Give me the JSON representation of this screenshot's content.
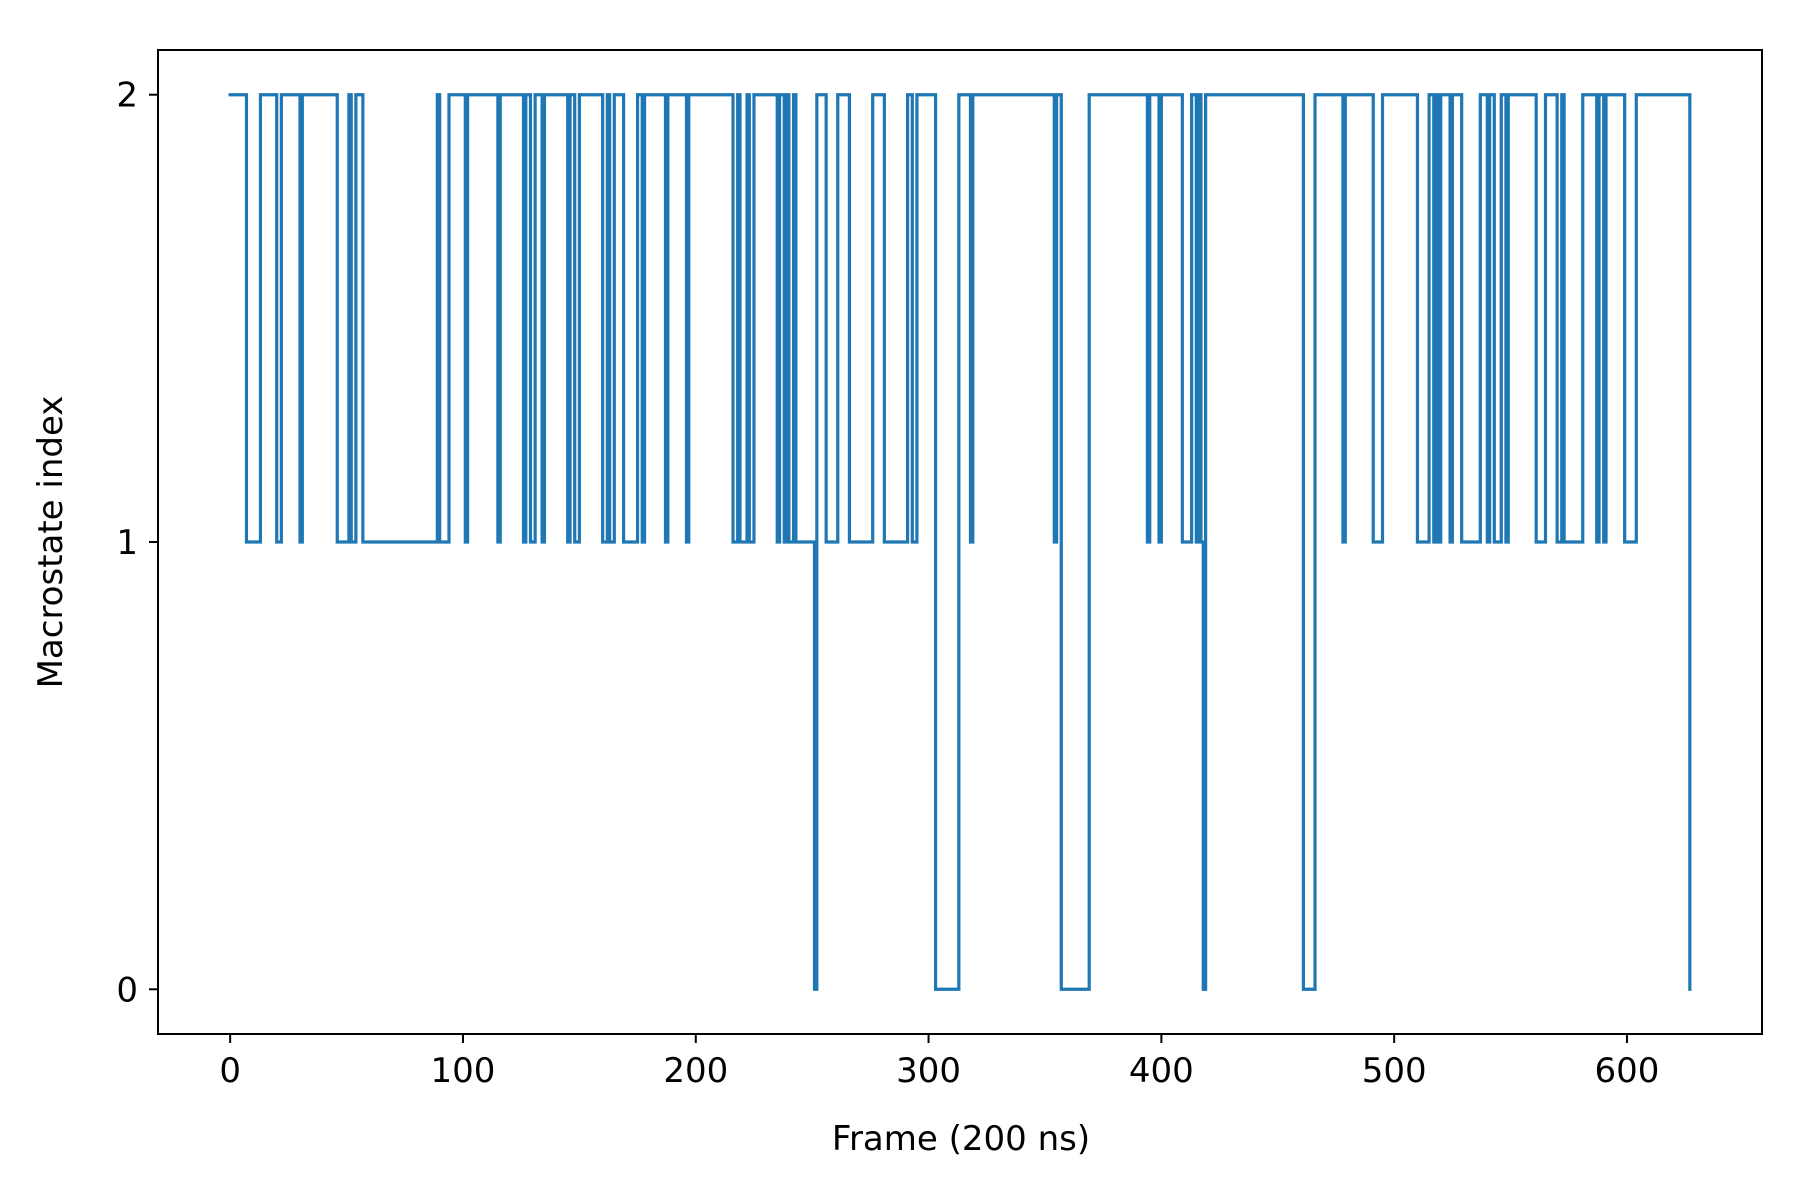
{
  "chart_data": {
    "type": "line",
    "drawstyle": "steps-post",
    "title": "",
    "xlabel": "Frame (200 ns)",
    "ylabel": "Macrostate index",
    "xlim": [
      -31,
      658
    ],
    "ylim": [
      -0.1,
      2.1
    ],
    "xticks": [
      0,
      100,
      200,
      300,
      400,
      500,
      600
    ],
    "yticks": [
      0,
      1,
      2
    ],
    "grid": false,
    "legend": "none",
    "color": "#1f77b4",
    "series": [
      {
        "x": [
          0,
          7,
          13,
          20,
          22,
          29,
          30,
          31,
          46,
          51,
          52,
          54,
          57,
          83,
          89,
          90,
          94,
          99,
          101,
          102,
          115,
          116,
          117,
          118,
          126,
          127,
          128,
          129,
          131,
          134,
          135,
          136,
          145,
          146,
          148,
          150,
          152,
          160,
          162,
          163,
          165,
          169,
          175,
          177,
          178,
          187,
          188,
          196,
          197,
          216,
          218,
          219,
          222,
          223,
          225,
          235,
          236,
          238,
          239,
          240,
          242,
          243,
          249,
          251,
          252,
          253,
          256,
          261,
          266,
          276,
          281,
          291,
          293,
          295,
          302,
          303,
          313,
          318,
          319,
          320,
          354,
          355,
          356,
          357,
          369,
          369,
          394,
          395,
          399,
          400,
          409,
          413,
          415,
          416,
          417,
          418,
          419,
          420,
          461,
          462,
          466,
          467,
          478,
          479,
          491,
          495,
          510,
          515,
          517,
          518,
          519,
          520,
          524,
          525,
          529,
          536,
          537,
          540,
          541,
          543,
          545,
          546,
          548,
          549,
          561,
          565,
          570,
          572,
          573,
          578,
          581,
          587,
          588,
          590,
          591,
          592,
          599,
          604,
          625,
          627
        ],
        "y": [
          2,
          1,
          2,
          1,
          2,
          2,
          1,
          2,
          1,
          2,
          1,
          2,
          1,
          1,
          2,
          1,
          2,
          2,
          1,
          2,
          1,
          2,
          2,
          2,
          1,
          2,
          2,
          1,
          2,
          1,
          2,
          2,
          1,
          2,
          1,
          2,
          2,
          1,
          2,
          1,
          2,
          1,
          2,
          1,
          2,
          1,
          2,
          1,
          2,
          1,
          2,
          1,
          2,
          1,
          2,
          1,
          2,
          1,
          2,
          1,
          2,
          1,
          1,
          0,
          2,
          2,
          1,
          2,
          1,
          2,
          1,
          2,
          1,
          2,
          2,
          0,
          2,
          1,
          2,
          2,
          1,
          2,
          2,
          0,
          0,
          2,
          1,
          2,
          1,
          2,
          1,
          2,
          1,
          2,
          1,
          0,
          2,
          2,
          0,
          0,
          2,
          2,
          1,
          2,
          1,
          2,
          1,
          2,
          1,
          2,
          1,
          2,
          1,
          2,
          1,
          1,
          2,
          1,
          2,
          1,
          1,
          2,
          1,
          2,
          1,
          2,
          1,
          2,
          1,
          1,
          2,
          1,
          2,
          1,
          2,
          2,
          1,
          2,
          2,
          0
        ]
      }
    ]
  }
}
